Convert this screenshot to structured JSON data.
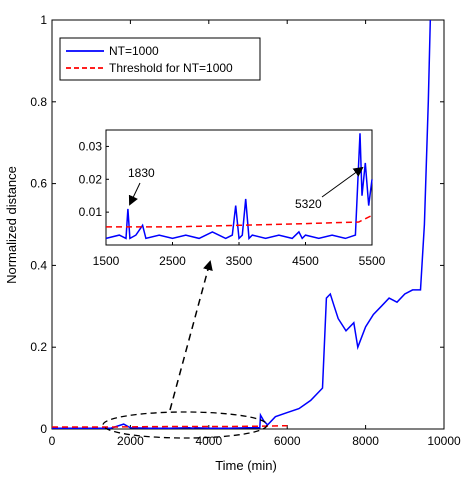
{
  "chart_data": {
    "type": "line",
    "title": "",
    "xlabel": "Time (min)",
    "ylabel": "Normalized distance",
    "xlim": [
      0,
      10000
    ],
    "ylim": [
      0,
      1
    ],
    "xticks": [
      "0",
      "2000",
      "4000",
      "6000",
      "8000",
      "10000"
    ],
    "yticks": [
      "0",
      "0.2",
      "0.4",
      "0.6",
      "0.8",
      "1"
    ],
    "grid": false,
    "legend_position": "top-left",
    "legend": [
      "NT=1000",
      "Threshold for NT=1000"
    ],
    "series": [
      {
        "name": "NT=1000",
        "color": "#0000ff",
        "style": "solid",
        "x": [
          0,
          1000,
          1500,
          1830,
          2000,
          2500,
          3000,
          3500,
          3600,
          3650,
          4000,
          4500,
          5000,
          5300,
          5320,
          5400,
          5500,
          5700,
          6000,
          6300,
          6600,
          6900,
          7000,
          7100,
          7200,
          7300,
          7500,
          7700,
          7800,
          8000,
          8200,
          8400,
          8600,
          8800,
          9000,
          9200,
          9400,
          9500,
          9600,
          9650
        ],
        "y": [
          0.002,
          0.002,
          0.002,
          0.012,
          0.003,
          0.002,
          0.002,
          0.003,
          0.002,
          0.003,
          0.002,
          0.002,
          0.003,
          0.003,
          0.034,
          0.02,
          0.01,
          0.03,
          0.04,
          0.05,
          0.07,
          0.1,
          0.32,
          0.33,
          0.3,
          0.27,
          0.24,
          0.26,
          0.2,
          0.25,
          0.28,
          0.3,
          0.32,
          0.31,
          0.33,
          0.34,
          0.34,
          0.5,
          0.8,
          1.0
        ]
      },
      {
        "name": "Threshold for NT=1000",
        "color": "#ff0000",
        "style": "dashed",
        "x": [
          0,
          1500,
          3000,
          4500,
          5500,
          6000
        ],
        "y": [
          0.005,
          0.005,
          0.006,
          0.006,
          0.007,
          0.008
        ]
      }
    ],
    "inset": {
      "xlim": [
        1500,
        5500
      ],
      "ylim": [
        0,
        0.035
      ],
      "xticks": [
        "1500",
        "2500",
        "3500",
        "4500",
        "5500"
      ],
      "yticks": [
        "0.01",
        "0.02",
        "0.03"
      ],
      "annotations": [
        "1830",
        "5320"
      ],
      "series": [
        {
          "name": "NT=1000",
          "x": [
            1500,
            1700,
            1800,
            1830,
            1860,
            1950,
            2050,
            2100,
            2300,
            2500,
            2700,
            2900,
            3100,
            3300,
            3400,
            3450,
            3500,
            3550,
            3600,
            3650,
            3700,
            3900,
            4100,
            4300,
            4400,
            4450,
            4500,
            4700,
            4900,
            5100,
            5250,
            5320,
            5350,
            5400,
            5450,
            5500
          ],
          "y": [
            0.002,
            0.003,
            0.002,
            0.011,
            0.002,
            0.003,
            0.006,
            0.002,
            0.003,
            0.002,
            0.003,
            0.002,
            0.004,
            0.002,
            0.003,
            0.012,
            0.002,
            0.003,
            0.014,
            0.002,
            0.003,
            0.002,
            0.003,
            0.002,
            0.004,
            0.002,
            0.003,
            0.002,
            0.003,
            0.002,
            0.003,
            0.034,
            0.015,
            0.025,
            0.012,
            0.02
          ]
        },
        {
          "name": "Threshold for NT=1000",
          "x": [
            1500,
            2500,
            3500,
            4500,
            5300,
            5500
          ],
          "y": [
            0.0055,
            0.0055,
            0.006,
            0.0065,
            0.007,
            0.009
          ]
        }
      ]
    }
  }
}
